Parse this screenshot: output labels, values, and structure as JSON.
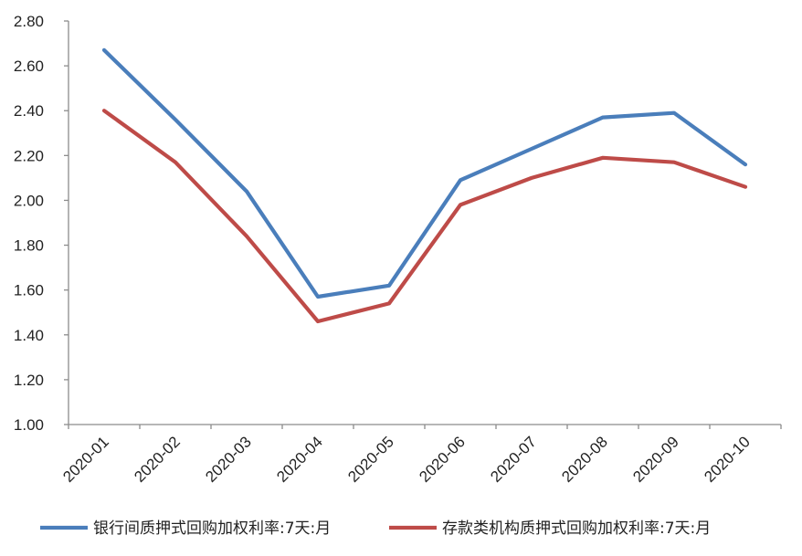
{
  "colors": {
    "series1": "#4a7ebb",
    "series2": "#be4b48",
    "axis": "#8c8c8c"
  },
  "chart_data": {
    "type": "line",
    "title": "",
    "xlabel": "",
    "ylabel": "",
    "categories": [
      "2020-01",
      "2020-02",
      "2020-03",
      "2020-04",
      "2020-05",
      "2020-06",
      "2020-07",
      "2020-08",
      "2020-09",
      "2020-10"
    ],
    "series": [
      {
        "name": "银行间质押式回购加权利率:7天:月",
        "values": [
          2.67,
          2.36,
          2.04,
          1.57,
          1.62,
          2.09,
          2.23,
          2.37,
          2.39,
          2.16
        ]
      },
      {
        "name": "存款类机构质押式回购加权利率:7天:月",
        "values": [
          2.4,
          2.17,
          1.84,
          1.46,
          1.54,
          1.98,
          2.1,
          2.19,
          2.17,
          2.06
        ]
      }
    ],
    "ylim": [
      1.0,
      2.8
    ],
    "yticks": [
      "1.00",
      "1.20",
      "1.40",
      "1.60",
      "1.80",
      "2.00",
      "2.20",
      "2.40",
      "2.60",
      "2.80"
    ],
    "grid": false,
    "legend_position": "bottom"
  }
}
